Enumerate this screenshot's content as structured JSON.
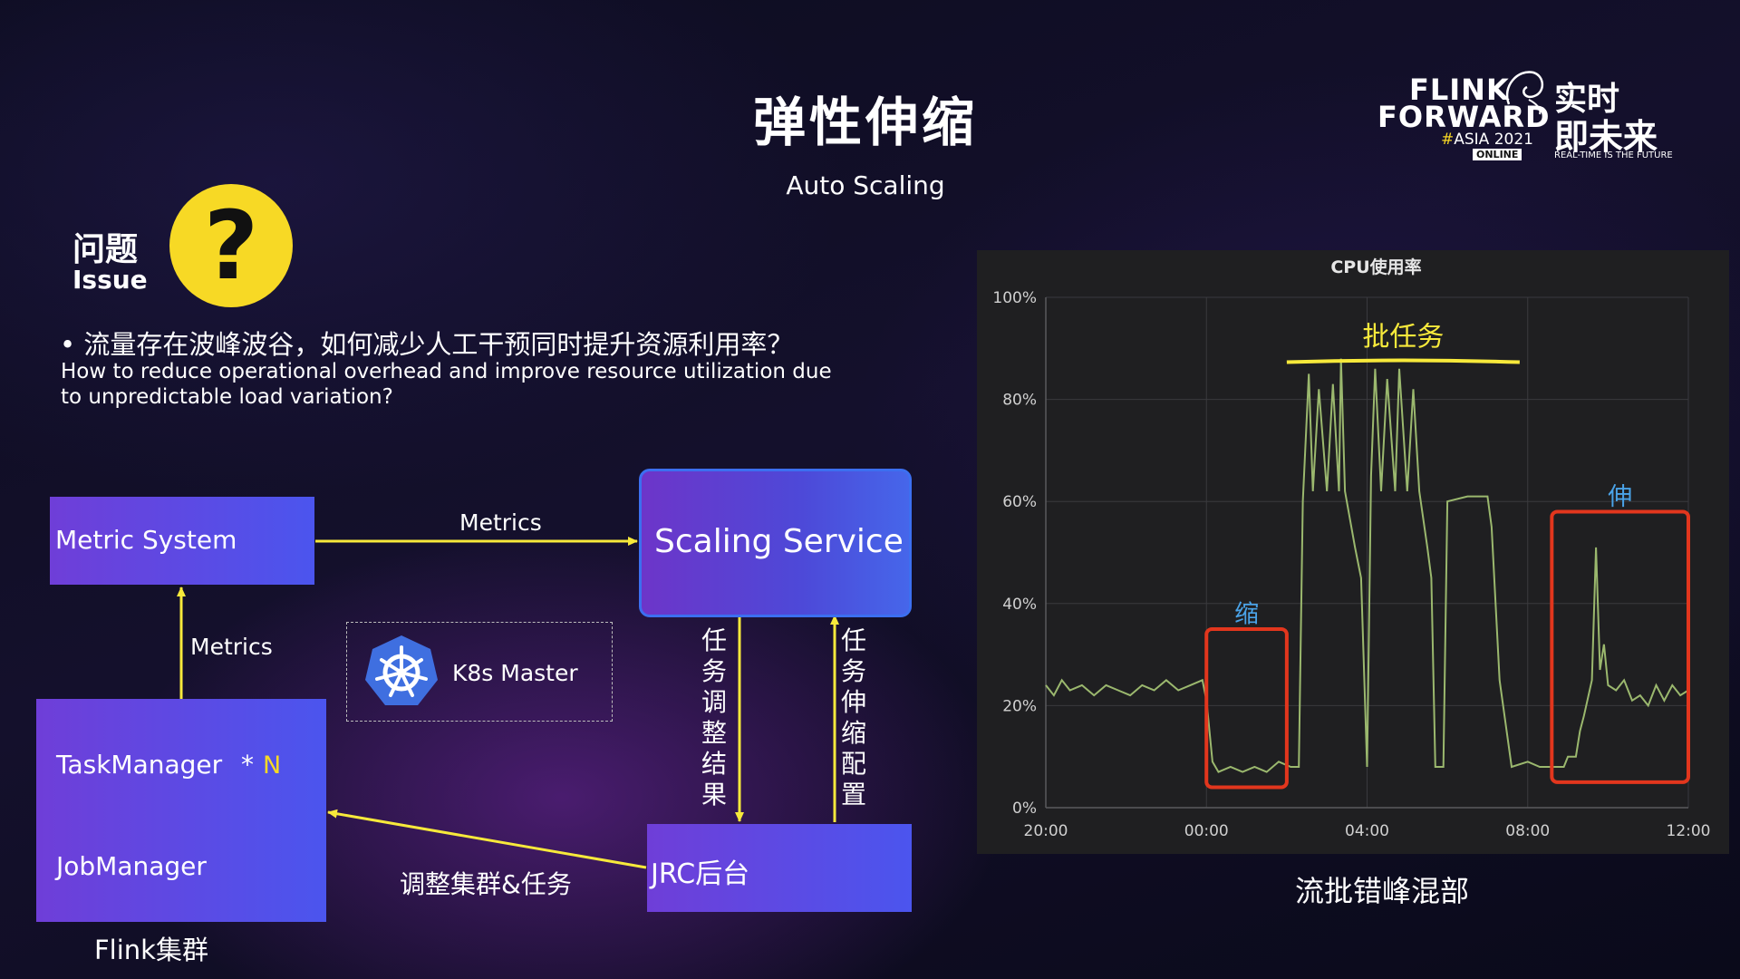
{
  "slide": {
    "title": "弹性伸缩",
    "subtitle": "Auto Scaling"
  },
  "logo": {
    "line1": "FLINK",
    "line2": "FORWARD",
    "hash": "#",
    "event": "ASIA 2021",
    "badge": "ONLINE",
    "cn_line1": "实时",
    "cn_line2": "即未来",
    "tagline": "REAL-TIME IS THE FUTURE"
  },
  "issue": {
    "label_cn": "问题",
    "label_en": "Issue",
    "icon": "question-mark-icon",
    "question_cn": "•  流量存在波峰波谷，如何减少人工干预同时提升资源利用率？",
    "question_en": "How to reduce operational overhead and improve resource utilization due to unpredictable load variation?"
  },
  "diagram": {
    "metric_system": "Metric System",
    "scaling_service": "Scaling Service",
    "k8s_master": "K8s Master",
    "task_manager": "TaskManager",
    "multiplier_star": "*",
    "multiplier_n": "N",
    "job_manager": "JobManager",
    "flink_cluster": "Flink集群",
    "jrc": "JRC后台",
    "edge_metrics_top": "Metrics",
    "edge_metrics_left": "Metrics",
    "edge_task_result": "任务调整结果",
    "edge_scaling_config": "任务伸缩配置",
    "edge_adjust": "调整集群&任务",
    "colors": {
      "arrow": "#f7e93b",
      "box_start": "#6f3ed8",
      "box_end": "#4b55ee"
    }
  },
  "chart_data": {
    "type": "line",
    "title": "CPU使用率",
    "x_ticks": [
      "20:00",
      "00:00",
      "04:00",
      "08:00",
      "12:00"
    ],
    "y_ticks": [
      "0%",
      "20%",
      "40%",
      "60%",
      "80%",
      "100%"
    ],
    "ylim": [
      0,
      100
    ],
    "xlim_hours": [
      0,
      16
    ],
    "grid": true,
    "series": [
      {
        "color": "#9bb86e",
        "points": [
          [
            0,
            24
          ],
          [
            0.2,
            22
          ],
          [
            0.4,
            25
          ],
          [
            0.6,
            23
          ],
          [
            0.9,
            24
          ],
          [
            1.2,
            22
          ],
          [
            1.5,
            24
          ],
          [
            1.8,
            23
          ],
          [
            2.1,
            22
          ],
          [
            2.4,
            24
          ],
          [
            2.7,
            23
          ],
          [
            3.0,
            25
          ],
          [
            3.3,
            23
          ],
          [
            3.6,
            24
          ],
          [
            3.9,
            25
          ],
          [
            4.0,
            21
          ],
          [
            4.15,
            9
          ],
          [
            4.3,
            7
          ],
          [
            4.6,
            8
          ],
          [
            4.9,
            7
          ],
          [
            5.2,
            8
          ],
          [
            5.5,
            7
          ],
          [
            5.8,
            9
          ],
          [
            6.1,
            8
          ],
          [
            6.3,
            8
          ],
          [
            6.4,
            60
          ],
          [
            6.55,
            85
          ],
          [
            6.65,
            62
          ],
          [
            6.8,
            82
          ],
          [
            7.0,
            62
          ],
          [
            7.15,
            83
          ],
          [
            7.3,
            62
          ],
          [
            7.35,
            88
          ],
          [
            7.45,
            62
          ],
          [
            7.7,
            51
          ],
          [
            7.85,
            45
          ],
          [
            8.0,
            8
          ],
          [
            8.1,
            65
          ],
          [
            8.2,
            86
          ],
          [
            8.35,
            62
          ],
          [
            8.5,
            84
          ],
          [
            8.7,
            62
          ],
          [
            8.8,
            86
          ],
          [
            9.0,
            62
          ],
          [
            9.15,
            82
          ],
          [
            9.3,
            62
          ],
          [
            9.5,
            51
          ],
          [
            9.6,
            45
          ],
          [
            9.7,
            8
          ],
          [
            9.9,
            8
          ],
          [
            10.0,
            60
          ],
          [
            10.5,
            61
          ],
          [
            11.0,
            61
          ],
          [
            11.1,
            55
          ],
          [
            11.3,
            25
          ],
          [
            11.6,
            8
          ],
          [
            12.0,
            9
          ],
          [
            12.3,
            8
          ],
          [
            12.6,
            8
          ],
          [
            12.9,
            8
          ],
          [
            13.0,
            10
          ],
          [
            13.2,
            10
          ],
          [
            13.3,
            15
          ],
          [
            13.4,
            18
          ],
          [
            13.6,
            25
          ],
          [
            13.7,
            51
          ],
          [
            13.8,
            27
          ],
          [
            13.9,
            32
          ],
          [
            14.0,
            24
          ],
          [
            14.2,
            23
          ],
          [
            14.4,
            25
          ],
          [
            14.6,
            21
          ],
          [
            14.8,
            22
          ],
          [
            15.0,
            20
          ],
          [
            15.2,
            24
          ],
          [
            15.4,
            21
          ],
          [
            15.6,
            24
          ],
          [
            15.8,
            22
          ],
          [
            16.0,
            23
          ]
        ]
      }
    ],
    "annotations": [
      {
        "text": "批任务",
        "color": "#f7e93b"
      },
      {
        "text": "缩",
        "color": "#4aa3e8"
      },
      {
        "text": "伸",
        "color": "#4aa3e8"
      }
    ],
    "highlight_regions": [
      {
        "x": [
          4.0,
          6.0
        ],
        "y": [
          4,
          35
        ],
        "color": "#e2361d"
      },
      {
        "x": [
          12.6,
          16.0
        ],
        "y": [
          5,
          58
        ],
        "color": "#e2361d"
      }
    ],
    "batch_span": [
      6.0,
      11.8
    ],
    "caption": "流批错峰混部"
  }
}
